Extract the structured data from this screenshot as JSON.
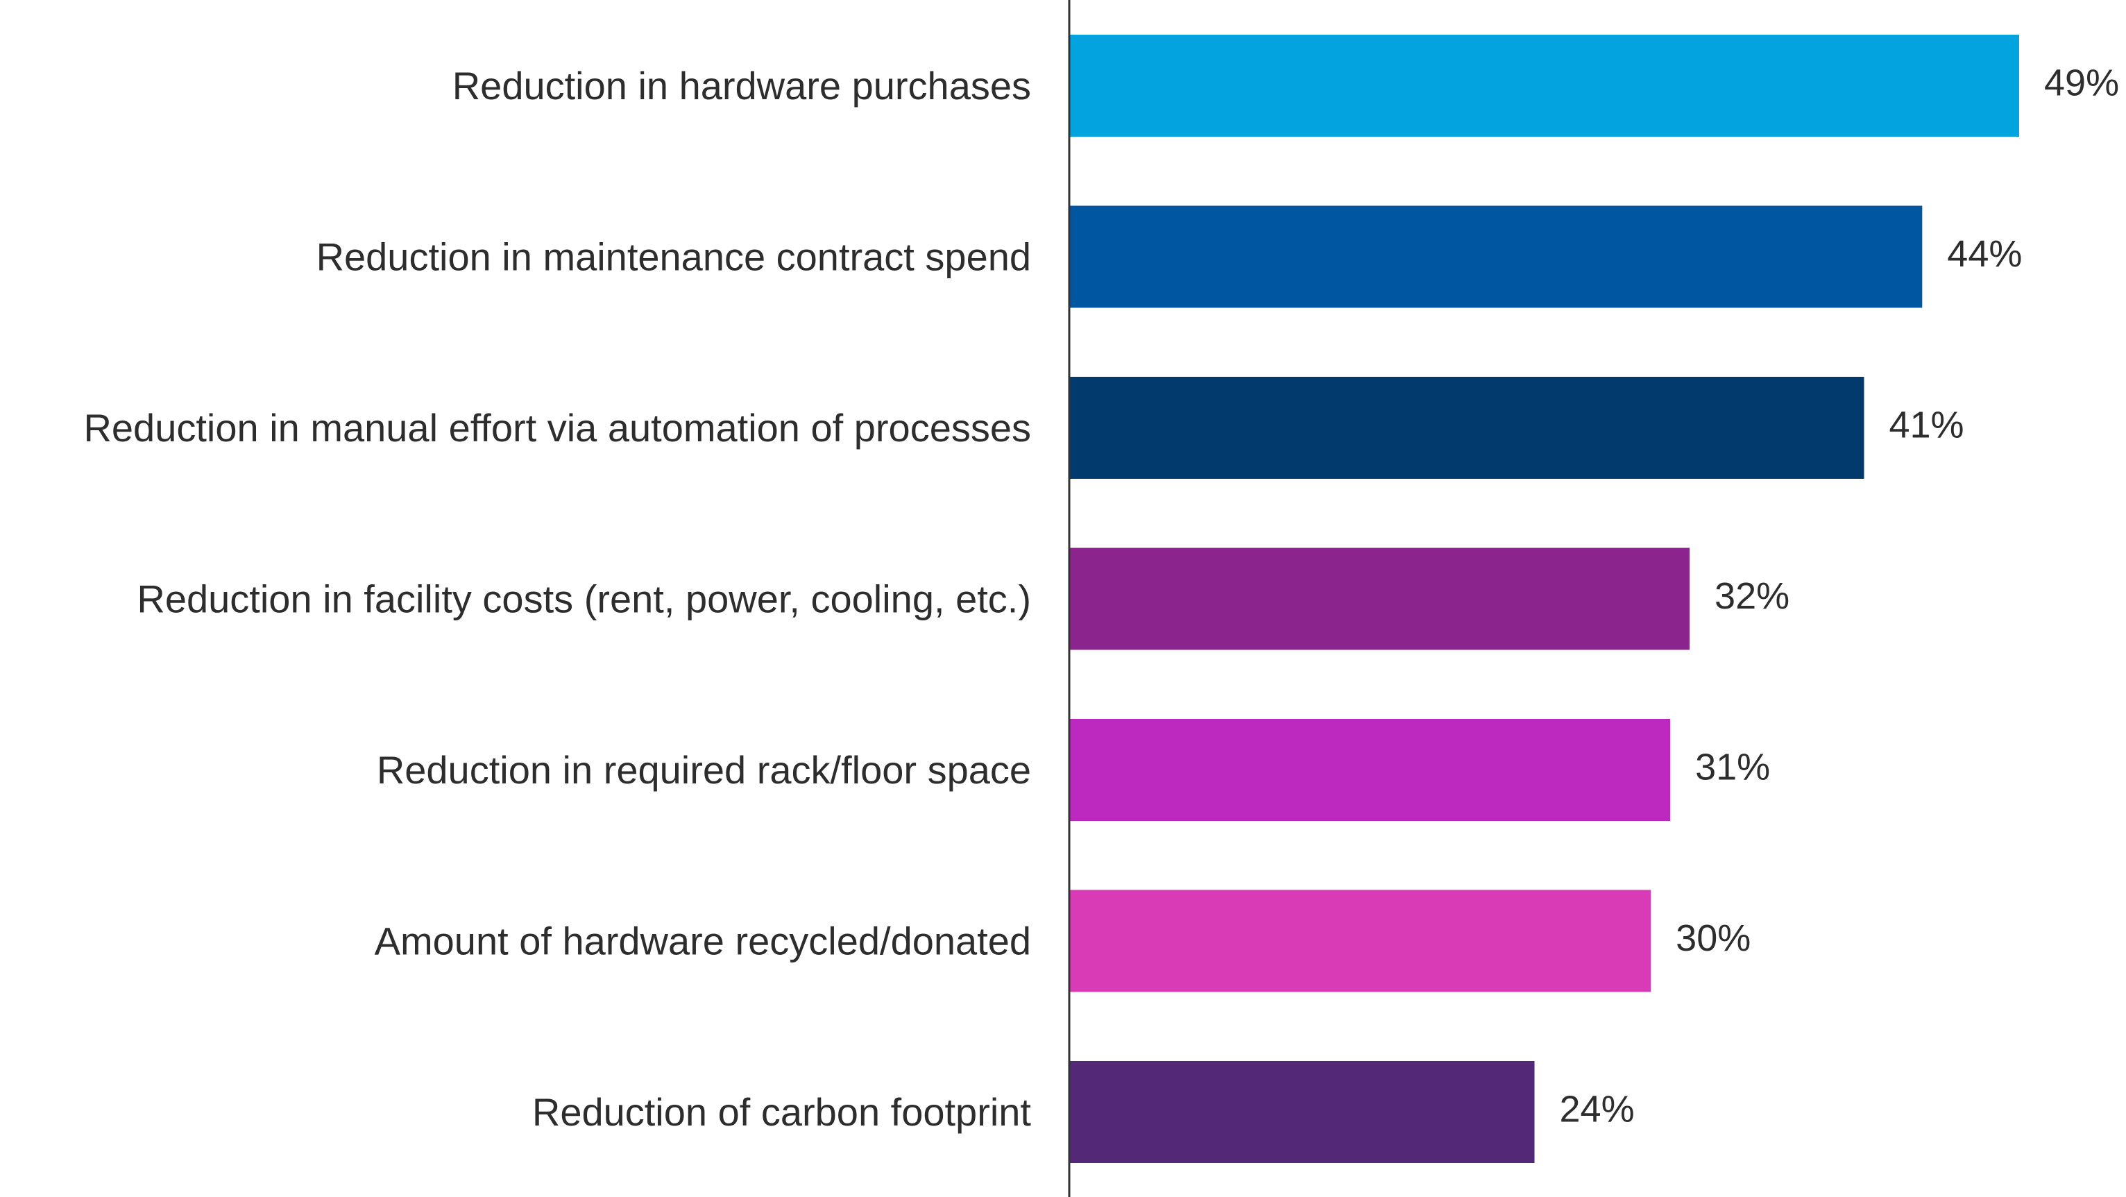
{
  "chart_data": {
    "type": "bar",
    "orientation": "horizontal",
    "categories": [
      "Reduction in hardware purchases",
      "Reduction in maintenance contract spend",
      "Reduction in manual effort via automation of processes",
      "Reduction in facility costs (rent, power, cooling, etc.)",
      "Reduction in required rack/floor space",
      "Amount of hardware recycled/donated",
      "Reduction of carbon footprint"
    ],
    "values": [
      49,
      44,
      41,
      32,
      31,
      30,
      24
    ],
    "value_labels": [
      "49%",
      "44%",
      "41%",
      "32%",
      "31%",
      "30%",
      "24%"
    ],
    "colors": [
      "#03a3e0",
      "#0156a2",
      "#033a6e",
      "#8b258d",
      "#bd28be",
      "#d83bb5",
      "#522877"
    ],
    "unit": "%",
    "xlim": [
      0,
      49
    ],
    "grid": false,
    "legend": "none"
  }
}
